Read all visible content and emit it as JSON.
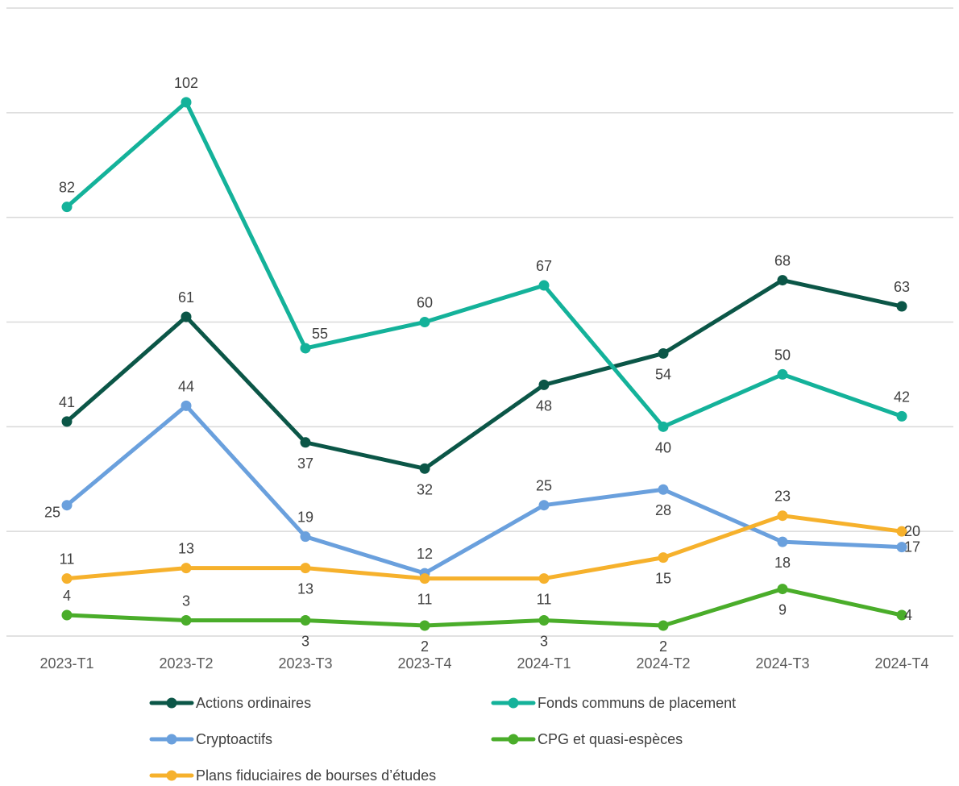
{
  "chart_data": {
    "type": "line",
    "categories": [
      "2023-T1",
      "2023-T2",
      "2023-T3",
      "2023-T4",
      "2024-T1",
      "2024-T2",
      "2024-T3",
      "2024-T4"
    ],
    "ylim": [
      0,
      120
    ],
    "y_gridlines": [
      0,
      20,
      40,
      60,
      80,
      100,
      120
    ],
    "grid": true,
    "legend_placement": "bottom",
    "series": [
      {
        "name": "Actions ordinaires",
        "color": "#0b5647",
        "values": [
          41,
          61,
          37,
          32,
          48,
          54,
          68,
          63
        ]
      },
      {
        "name": "Fonds communs de placement",
        "color": "#14b29a",
        "values": [
          82,
          102,
          55,
          60,
          67,
          40,
          50,
          42
        ]
      },
      {
        "name": "Cryptoactifs",
        "color": "#6aa0dd",
        "values": [
          25,
          44,
          19,
          12,
          25,
          28,
          18,
          17
        ]
      },
      {
        "name": "CPG et quasi-espèces",
        "color": "#4aad2a",
        "values": [
          4,
          3,
          3,
          2,
          3,
          2,
          9,
          4
        ]
      },
      {
        "name": "Plans fiduciaires de bourses d’études",
        "color": "#f6b12c",
        "values": [
          11,
          13,
          13,
          11,
          11,
          15,
          23,
          20
        ]
      }
    ]
  }
}
